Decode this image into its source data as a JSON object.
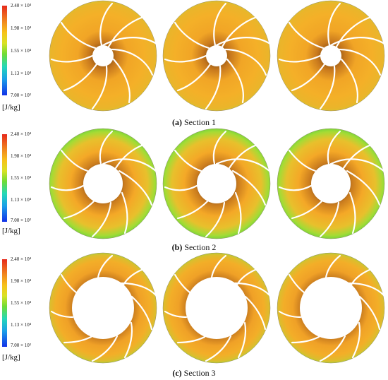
{
  "figure": {
    "legend_ticks": [
      "2.40 × 10⁴",
      "1.98 × 10⁴",
      "1.55 × 10⁴",
      "1.13 × 10⁴",
      "7.00 × 10³"
    ],
    "unit": "[J/kg]",
    "panels": [
      {
        "tag": "(a)",
        "title": "Section 1"
      },
      {
        "tag": "(b)",
        "title": "Section 2"
      },
      {
        "tag": "(c)",
        "title": "Section 3"
      }
    ]
  }
}
